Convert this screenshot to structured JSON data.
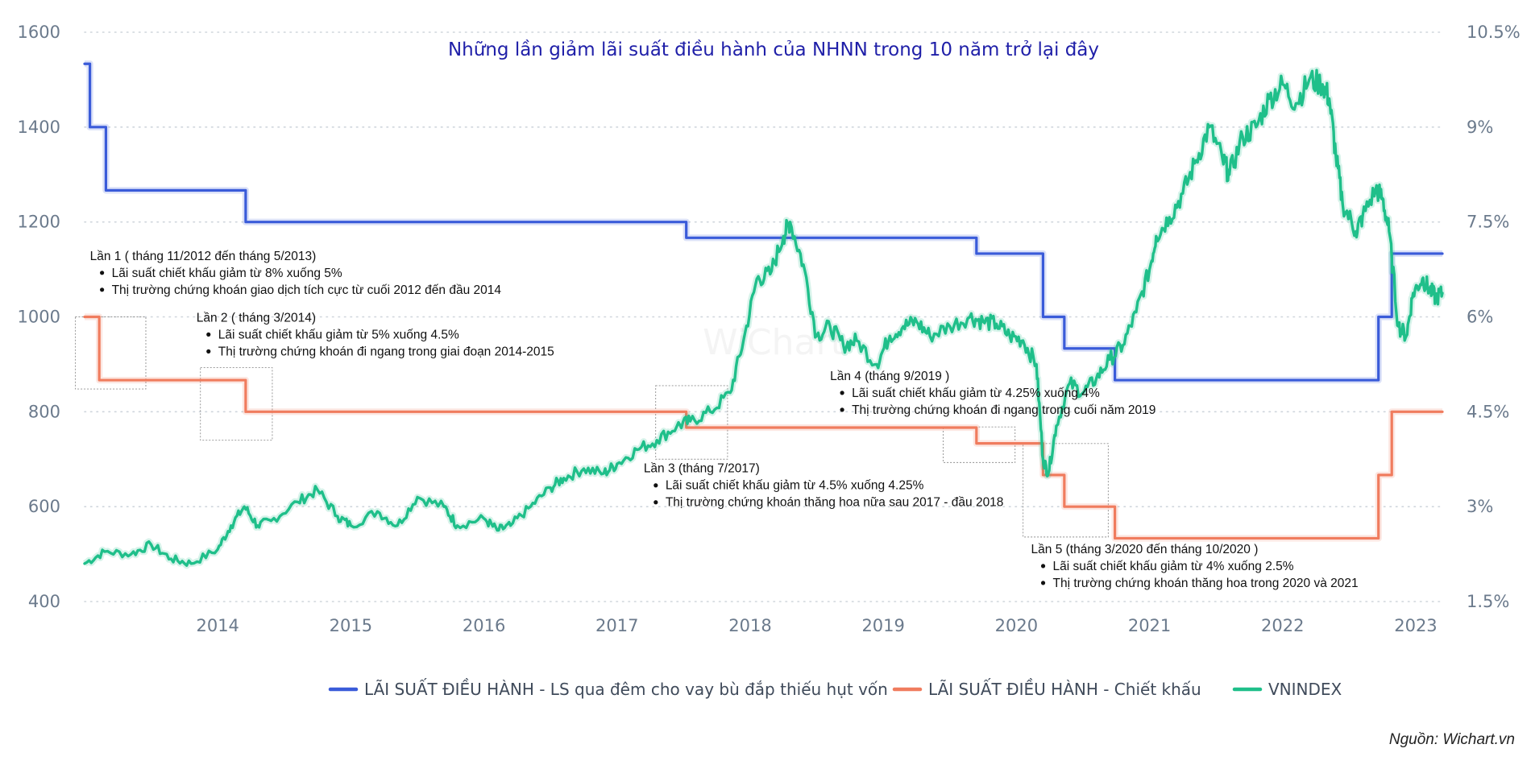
{
  "chart_data": {
    "type": "line",
    "title": "Những lần giảm lãi suất điều hành của NHNN trong 10 năm trở lại đây",
    "watermark": "WiChart",
    "source": "Nguồn: Wichart.vn",
    "x_axis": {
      "ticks": [
        "2014",
        "2015",
        "2016",
        "2017",
        "2018",
        "2019",
        "2020",
        "2021",
        "2022",
        "2023"
      ],
      "range": [
        2013.0,
        2023.2
      ]
    },
    "y_left": {
      "ticks": [
        "400",
        "600",
        "800",
        "1000",
        "1200",
        "1400",
        "1600"
      ],
      "range": [
        400,
        1600
      ]
    },
    "y_right": {
      "ticks": [
        "1.5%",
        "3%",
        "4.5%",
        "6%",
        "7.5%",
        "9%",
        "10.5%"
      ],
      "range": [
        1.5,
        10.5
      ]
    },
    "grid": true,
    "legend_position": "bottom",
    "series": [
      {
        "name": "LÃI SUẤT ĐIỀU HÀNH - LS qua đêm cho vay bù đắp thiếu hụt vốn",
        "axis": "right",
        "color": "#3a5bd9",
        "shape": "step",
        "points": [
          [
            2013.0,
            10.0
          ],
          [
            2013.04,
            9.0
          ],
          [
            2013.16,
            8.0
          ],
          [
            2014.21,
            7.5
          ],
          [
            2017.52,
            7.25
          ],
          [
            2019.7,
            7.0
          ],
          [
            2020.2,
            6.0
          ],
          [
            2020.36,
            5.5
          ],
          [
            2020.74,
            5.0
          ],
          [
            2022.72,
            6.0
          ],
          [
            2022.82,
            7.0
          ],
          [
            2023.2,
            7.0
          ]
        ]
      },
      {
        "name": "LÃI SUẤT ĐIỀU HÀNH - Chiết khấu",
        "axis": "right",
        "color": "#f07c5e",
        "shape": "step",
        "points": [
          [
            2013.0,
            6.0
          ],
          [
            2013.11,
            5.0
          ],
          [
            2014.21,
            4.5
          ],
          [
            2017.52,
            4.25
          ],
          [
            2019.7,
            4.0
          ],
          [
            2020.2,
            3.5
          ],
          [
            2020.36,
            3.0
          ],
          [
            2020.74,
            2.5
          ],
          [
            2022.72,
            3.5
          ],
          [
            2022.82,
            4.5
          ],
          [
            2023.2,
            4.5
          ]
        ]
      },
      {
        "name": "VNINDEX",
        "axis": "left",
        "color": "#1fbf8a",
        "shape": "line",
        "points": [
          [
            2013.0,
            480
          ],
          [
            2013.15,
            505
          ],
          [
            2013.35,
            500
          ],
          [
            2013.5,
            520
          ],
          [
            2013.65,
            490
          ],
          [
            2013.8,
            480
          ],
          [
            2014.0,
            510
          ],
          [
            2014.1,
            560
          ],
          [
            2014.2,
            600
          ],
          [
            2014.3,
            560
          ],
          [
            2014.4,
            570
          ],
          [
            2014.6,
            610
          ],
          [
            2014.75,
            635
          ],
          [
            2014.9,
            580
          ],
          [
            2015.0,
            560
          ],
          [
            2015.2,
            590
          ],
          [
            2015.35,
            560
          ],
          [
            2015.5,
            620
          ],
          [
            2015.7,
            600
          ],
          [
            2015.8,
            560
          ],
          [
            2016.0,
            575
          ],
          [
            2016.1,
            550
          ],
          [
            2016.2,
            560
          ],
          [
            2016.35,
            600
          ],
          [
            2016.5,
            640
          ],
          [
            2016.6,
            660
          ],
          [
            2016.75,
            680
          ],
          [
            2016.9,
            670
          ],
          [
            2017.0,
            690
          ],
          [
            2017.15,
            720
          ],
          [
            2017.3,
            740
          ],
          [
            2017.45,
            770
          ],
          [
            2017.55,
            780
          ],
          [
            2017.7,
            800
          ],
          [
            2017.85,
            840
          ],
          [
            2017.95,
            950
          ],
          [
            2018.05,
            1080
          ],
          [
            2018.15,
            1090
          ],
          [
            2018.25,
            1170
          ],
          [
            2018.3,
            1200
          ],
          [
            2018.4,
            1110
          ],
          [
            2018.5,
            960
          ],
          [
            2018.6,
            980
          ],
          [
            2018.7,
            940
          ],
          [
            2018.8,
            950
          ],
          [
            2018.95,
            900
          ],
          [
            2019.05,
            960
          ],
          [
            2019.15,
            980
          ],
          [
            2019.25,
            990
          ],
          [
            2019.35,
            960
          ],
          [
            2019.5,
            980
          ],
          [
            2019.65,
            1000
          ],
          [
            2019.75,
            990
          ],
          [
            2019.85,
            985
          ],
          [
            2019.95,
            960
          ],
          [
            2020.05,
            950
          ],
          [
            2020.15,
            900
          ],
          [
            2020.2,
            700
          ],
          [
            2020.24,
            670
          ],
          [
            2020.3,
            770
          ],
          [
            2020.4,
            860
          ],
          [
            2020.5,
            840
          ],
          [
            2020.6,
            870
          ],
          [
            2020.7,
            910
          ],
          [
            2020.8,
            940
          ],
          [
            2020.9,
            1010
          ],
          [
            2021.0,
            1100
          ],
          [
            2021.05,
            1170
          ],
          [
            2021.15,
            1210
          ],
          [
            2021.25,
            1260
          ],
          [
            2021.35,
            1330
          ],
          [
            2021.45,
            1400
          ],
          [
            2021.55,
            1330
          ],
          [
            2021.6,
            1300
          ],
          [
            2021.7,
            1380
          ],
          [
            2021.8,
            1400
          ],
          [
            2021.9,
            1460
          ],
          [
            2022.0,
            1490
          ],
          [
            2022.1,
            1450
          ],
          [
            2022.2,
            1500
          ],
          [
            2022.3,
            1490
          ],
          [
            2022.35,
            1460
          ],
          [
            2022.4,
            1340
          ],
          [
            2022.45,
            1240
          ],
          [
            2022.55,
            1180
          ],
          [
            2022.6,
            1210
          ],
          [
            2022.7,
            1270
          ],
          [
            2022.75,
            1250
          ],
          [
            2022.8,
            1180
          ],
          [
            2022.87,
            980
          ],
          [
            2022.93,
            960
          ],
          [
            2022.98,
            1050
          ],
          [
            2023.05,
            1080
          ],
          [
            2023.1,
            1060
          ],
          [
            2023.15,
            1040
          ],
          [
            2023.2,
            1050
          ]
        ]
      }
    ],
    "annotations": [
      {
        "title": "Lần 1 ( tháng 11/2012 đến tháng 5/2013)",
        "bullets": [
          "Lãi suất chiết khấu giảm từ 8% xuống 5%",
          "Thị trường chứng khoán giao dịch tích cực từ cuối 2012 đến đầu 2014"
        ]
      },
      {
        "title": "Lần 2 ( tháng 3/2014)",
        "bullets": [
          "Lãi suất chiết khấu giảm từ 5% xuống 4.5%",
          "Thị trường chứng khoán đi ngang trong giai đoạn 2014-2015"
        ]
      },
      {
        "title": "Lần 3 (tháng 7/2017)",
        "bullets": [
          "Lãi suất chiết khấu giảm từ 4.5% xuống 4.25%",
          "Thị trường chứng khoán thăng hoa nữa sau  2017 - đầu 2018"
        ]
      },
      {
        "title": "Lần 4 (tháng 9/2019 )",
        "bullets": [
          "Lãi suất chiết khấu giảm từ 4.25% xuống 4%",
          "Thị trường chứng khoán đi ngang trong cuối năm 2019"
        ]
      },
      {
        "title": "Lần 5 (tháng 3/2020 đến tháng 10/2020 )",
        "bullets": [
          "Lãi suất chiết khấu giảm từ 4% xuống 2.5%",
          "Thị trường chứng khoán thăng hoa trong 2020 và 2021"
        ]
      }
    ]
  }
}
